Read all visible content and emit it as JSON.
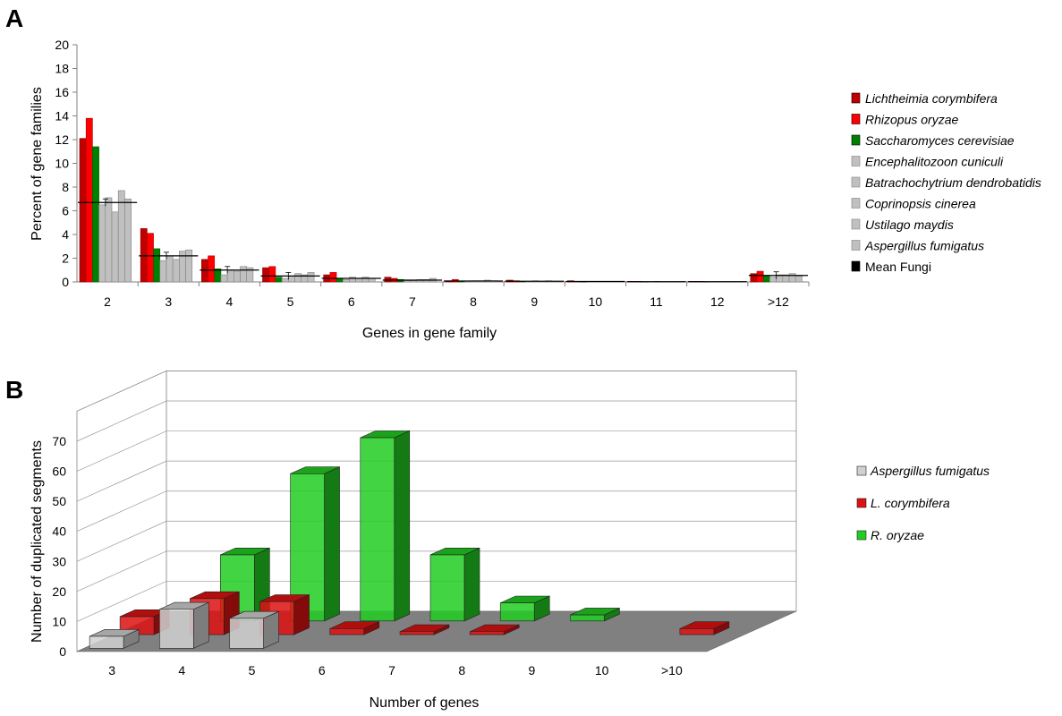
{
  "colors": {
    "lichtheimia": "#c00000",
    "rhizopus": "#ff0000",
    "saccharomyces": "#008000",
    "grey": "#c0c0c0",
    "mean": "#000000",
    "green3d": "#22cc22",
    "red3d": "#dd1111",
    "grey3d": "#d0d0d0",
    "floor3d": "#808080"
  },
  "chart_data": [
    {
      "panel": "A",
      "type": "bar",
      "xlabel": "Genes in gene family",
      "ylabel": "Percent of gene families",
      "ylim": [
        0,
        20
      ],
      "yticks": [
        "0",
        "2",
        "4",
        "6",
        "8",
        "10",
        "12",
        "14",
        "16",
        "18",
        "20"
      ],
      "categories": [
        "2",
        "3",
        "4",
        "5",
        "6",
        "7",
        "8",
        "9",
        "10",
        "11",
        "12",
        ">12"
      ],
      "legend_position": "right",
      "series": [
        {
          "name": "Lichtheimia corymbifera",
          "style": "italic",
          "color_key": "lichtheimia",
          "values": [
            12.1,
            4.5,
            1.9,
            1.2,
            0.6,
            0.4,
            0.1,
            0.15,
            0.1,
            0.05,
            0.05,
            0.7
          ]
        },
        {
          "name": "Rhizopus oryzae",
          "style": "italic",
          "color_key": "rhizopus",
          "values": [
            13.8,
            4.1,
            2.2,
            1.3,
            0.8,
            0.3,
            0.2,
            0.1,
            0.05,
            0.05,
            0.05,
            0.9
          ]
        },
        {
          "name": "Saccharomyces cerevisiae",
          "style": "italic",
          "color_key": "saccharomyces",
          "values": [
            11.4,
            2.8,
            1.1,
            0.4,
            0.3,
            0.2,
            0.05,
            0.05,
            0.02,
            0.02,
            0.02,
            0.5
          ]
        },
        {
          "name": "Encephalitozoon cuniculi",
          "style": "italic",
          "color_key": "grey",
          "values": [
            6.5,
            1.8,
            0.6,
            0.3,
            0.2,
            0.1,
            0.05,
            0.05,
            0.02,
            0.02,
            0.02,
            0.4
          ]
        },
        {
          "name": "Batrachochytrium dendrobatidis",
          "style": "italic",
          "color_key": "grey",
          "values": [
            7.1,
            2.2,
            1.0,
            0.5,
            0.4,
            0.1,
            0.1,
            0.1,
            0.05,
            0.05,
            0.02,
            0.6
          ]
        },
        {
          "name": "Coprinopsis cinerea",
          "style": "italic",
          "color_key": "grey",
          "values": [
            5.9,
            1.9,
            0.9,
            0.7,
            0.3,
            0.2,
            0.1,
            0.05,
            0.05,
            0.02,
            0.02,
            0.6
          ]
        },
        {
          "name": "Ustilago maydis",
          "style": "italic",
          "color_key": "grey",
          "values": [
            7.7,
            2.6,
            1.3,
            0.6,
            0.4,
            0.2,
            0.15,
            0.1,
            0.05,
            0.02,
            0.02,
            0.7
          ]
        },
        {
          "name": "Aspergillus fumigatus",
          "style": "italic",
          "color_key": "grey",
          "values": [
            7.0,
            2.7,
            1.2,
            0.8,
            0.3,
            0.3,
            0.1,
            0.05,
            0.05,
            0.02,
            0.02,
            0.5
          ]
        },
        {
          "name": "Mean Fungi",
          "style": "normal",
          "color_key": "mean",
          "kind": "mean-line",
          "values": [
            6.7,
            2.2,
            1.0,
            0.5,
            0.3,
            0.15,
            0.08,
            0.06,
            0.04,
            0.02,
            0.02,
            0.55
          ]
        }
      ]
    },
    {
      "panel": "B",
      "type": "bar",
      "subtype": "3d-clustered",
      "xlabel": "Number of genes",
      "ylabel": "Number of duplicated segments",
      "ylim": [
        0,
        70
      ],
      "yticks": [
        "0",
        "10",
        "20",
        "30",
        "40",
        "50",
        "60",
        "70"
      ],
      "categories": [
        "3",
        "4",
        "5",
        "6",
        "7",
        "8",
        "9",
        "10",
        ">10"
      ],
      "legend_position": "right",
      "series": [
        {
          "name": "Aspergillus fumigatus",
          "style": "italic",
          "color_key": "grey3d",
          "values": [
            4,
            13,
            10,
            0,
            0,
            0,
            0,
            0,
            0
          ]
        },
        {
          "name": "L. corymbifera",
          "style": "italic",
          "color_key": "red3d",
          "values": [
            6,
            12,
            11,
            2,
            1,
            1,
            0,
            0,
            2
          ]
        },
        {
          "name": "R. oryzae",
          "style": "italic",
          "color_key": "green3d",
          "values": [
            0,
            22,
            49,
            61,
            22,
            6,
            2,
            0,
            0
          ]
        }
      ]
    }
  ],
  "panelA": {
    "letter": "A"
  },
  "panelB": {
    "letter": "B"
  }
}
